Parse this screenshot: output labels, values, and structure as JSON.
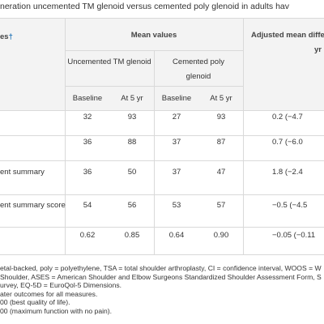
{
  "title": "neration uncemented TM glenoid versus cemented poly glenoid in adults hav",
  "header": {
    "stub": "es",
    "stub_note": "†",
    "mean_values": "Mean values",
    "adjusted": "Adjusted mean differ",
    "adjusted_2": "yr",
    "arm_1": "Uncemented TM glenoid",
    "arm_2": "Cemented poly glenoid",
    "columns": [
      "Baseline",
      "At 5 yr",
      "Baseline",
      "At 5 yr"
    ]
  },
  "table": {
    "rows": [
      {
        "values": [
          "32",
          "93",
          "27",
          "93"
        ],
        "difference": "0.2 (−4.7"
      },
      {
        "values": [
          "36",
          "88",
          "37",
          "87"
        ],
        "difference": "0.7 (−6.0"
      },
      {
        "label": "ent summary",
        "values": [
          "36",
          "50",
          "37",
          "47"
        ],
        "difference": "1.8 (−2.4"
      },
      {
        "label": "ent summary score",
        "values": [
          "54",
          "56",
          "53",
          "57"
        ],
        "difference": "−0.5 (−4.5"
      },
      {
        "values": [
          "0.62",
          "0.85",
          "0.64",
          "0.90"
        ],
        "difference": "−0.05 (−0.11"
      }
    ]
  },
  "footnotes": [
    "etal-backed, poly = polyethylene, TSA = total shoulder arthroplasty, CI = confidence interval, WOOS = W",
    "Shoulder, ASES = American Shoulder and Elbow Surgeons Standardized Shoulder Assessment Form, S",
    "urvey, EQ-5D = EuroQol-5 Dimensions.",
    "ater outcomes for all measures.",
    "00 (best quality of life).",
    "00 (maximum function with no pain)."
  ]
}
